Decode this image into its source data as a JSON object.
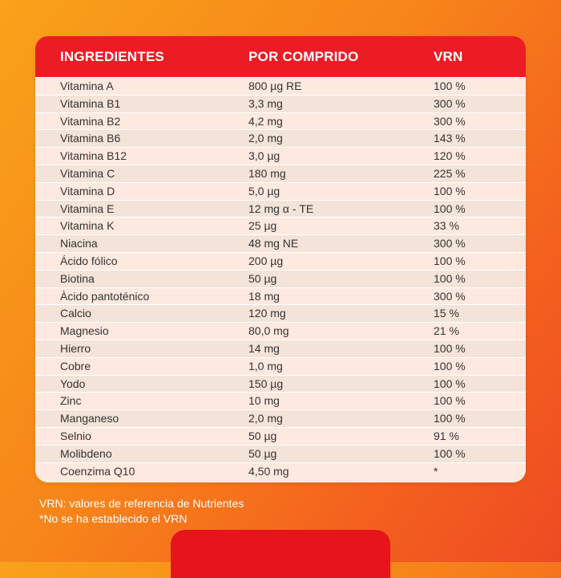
{
  "table": {
    "headers": [
      "INGREDIENTES",
      "POR COMPRIDO",
      "VRN"
    ],
    "rows": [
      {
        "name": "Vitamina A",
        "amount": "800 µg RE",
        "vrn": "100 %"
      },
      {
        "name": "Vitamina B1",
        "amount": "3,3 mg",
        "vrn": "300 %"
      },
      {
        "name": "Vitamina B2",
        "amount": "4,2 mg",
        "vrn": "300 %"
      },
      {
        "name": "Vitamina B6",
        "amount": "2,0 mg",
        "vrn": "143 %"
      },
      {
        "name": "Vitamina B12",
        "amount": "3,0 µg",
        "vrn": "120 %"
      },
      {
        "name": "Vitamina C",
        "amount": "180 mg",
        "vrn": "225 %"
      },
      {
        "name": "Vitamina D",
        "amount": "5,0 µg",
        "vrn": "100 %"
      },
      {
        "name": "Vitamina E",
        "amount": "12 mg α - TE",
        "vrn": "100 %"
      },
      {
        "name": "Vitamina K",
        "amount": "25 µg",
        "vrn": "33 %"
      },
      {
        "name": "Niacina",
        "amount": "48 mg NE",
        "vrn": "300 %"
      },
      {
        "name": "Ácido fólico",
        "amount": "200 µg",
        "vrn": "100 %"
      },
      {
        "name": "Biotina",
        "amount": "50 µg",
        "vrn": "100 %"
      },
      {
        "name": "Àcido pantoténico",
        "amount": "18 mg",
        "vrn": "300 %"
      },
      {
        "name": "Calcio",
        "amount": "120 mg",
        "vrn": "15 %"
      },
      {
        "name": "Magnesio",
        "amount": "80,0 mg",
        "vrn": "21 %"
      },
      {
        "name": "Hierro",
        "amount": "14 mg",
        "vrn": "100 %"
      },
      {
        "name": "Cobre",
        "amount": "1,0 mg",
        "vrn": "100 %"
      },
      {
        "name": "Yodo",
        "amount": "150 µg",
        "vrn": "100 %"
      },
      {
        "name": "Zinc",
        "amount": "10 mg",
        "vrn": "100 %"
      },
      {
        "name": "Manganeso",
        "amount": "2,0 mg",
        "vrn": "100 %"
      },
      {
        "name": "Selnio",
        "amount": "50 µg",
        "vrn": "91 %"
      },
      {
        "name": "Molibdeno",
        "amount": "50 µg",
        "vrn": "100 %"
      },
      {
        "name": "Coenzima Q10",
        "amount": "4,50 mg",
        "vrn": "*"
      }
    ]
  },
  "footnotes": [
    "VRN: valores de referencia de Nutrientes",
    "*No se ha establecido el VRN"
  ],
  "colors": {
    "header_red": "#ed1c24",
    "tab_red": "#e8141b",
    "card_bg": "#f7ecdf"
  }
}
